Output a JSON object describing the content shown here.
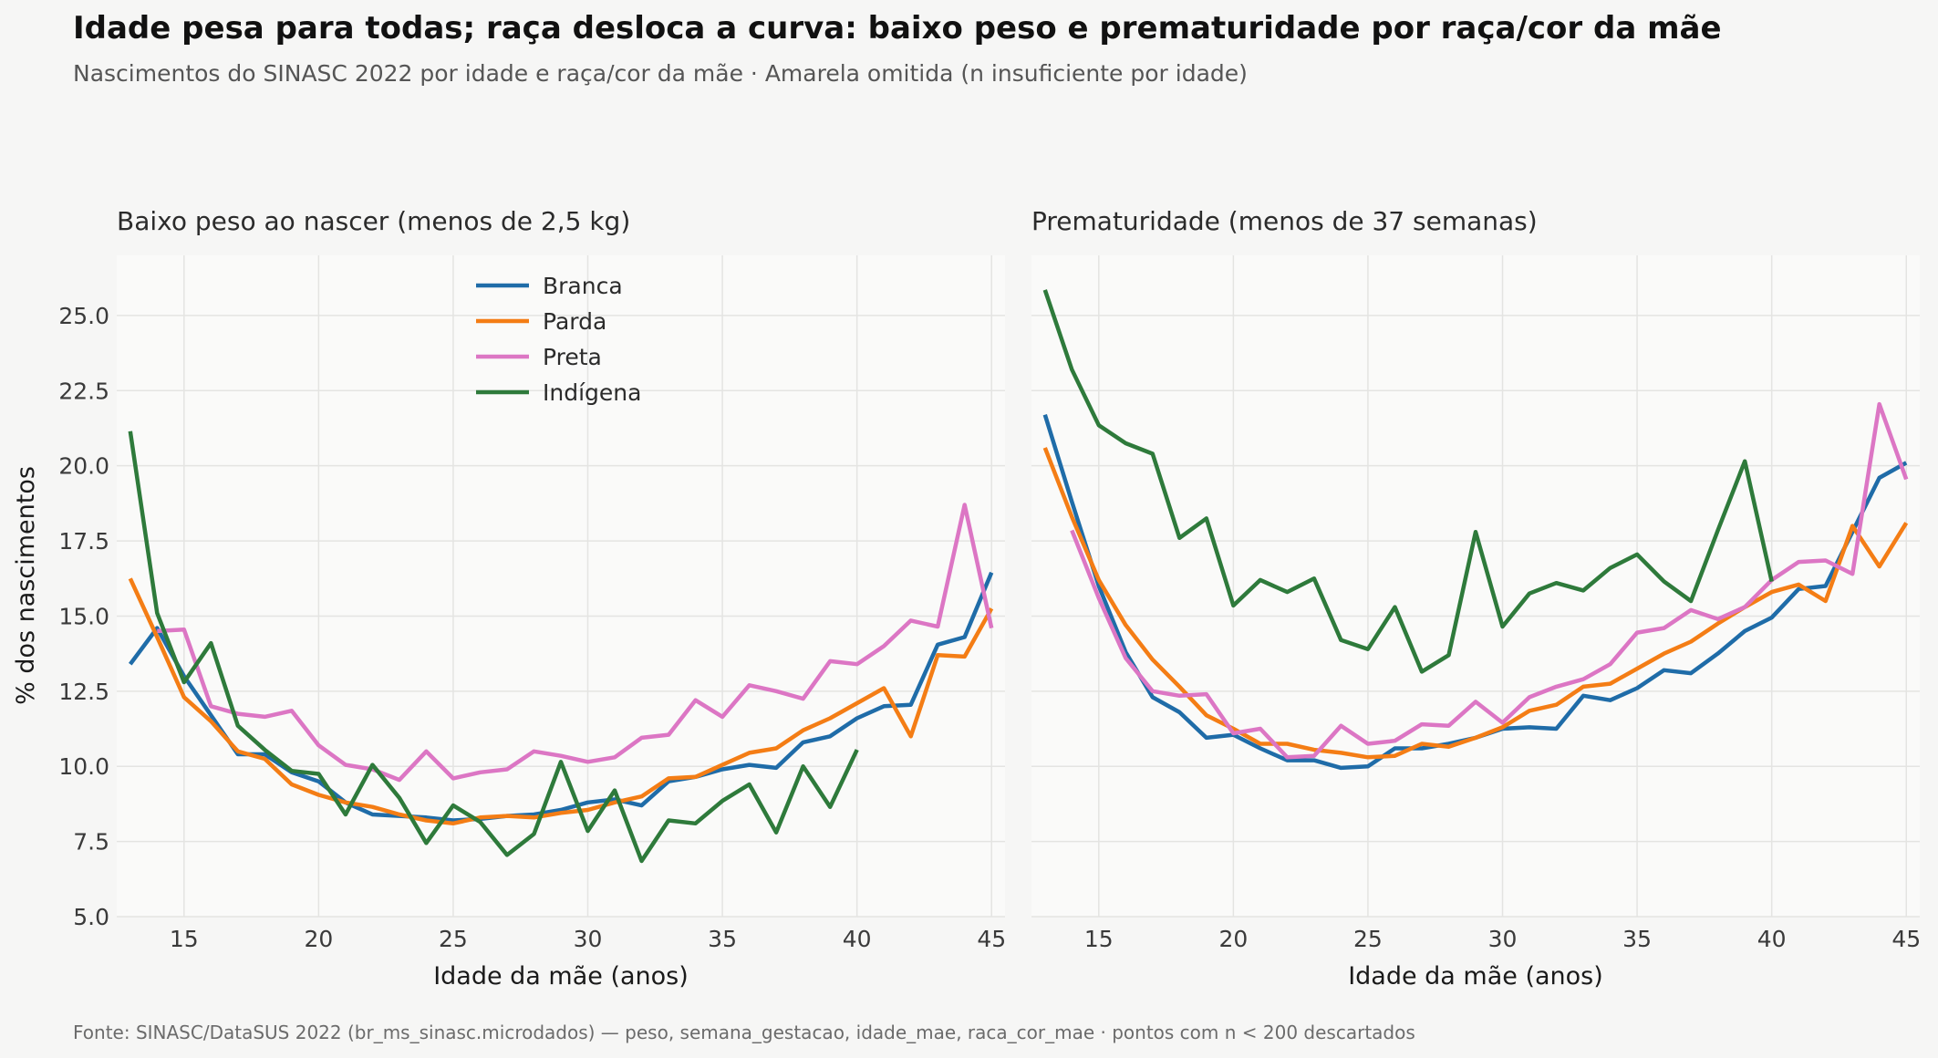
{
  "title": "Idade pesa para todas; raça desloca a curva: baixo peso e prematuridade por raça/cor da mãe",
  "subtitle": "Nascimentos do SINASC 2022 por idade e raça/cor da mãe · Amarela omitida (n insuficiente por idade)",
  "source": "Fonte: SINASC/DataSUS 2022 (br_ms_sinasc.microdados) — peso, semana_gestacao, idade_mae, raca_cor_mae · pontos com n < 200 descartados",
  "colors": {
    "Branca": "#1f6ca8",
    "Parda": "#f47d15",
    "Preta": "#dc76c4",
    "Indígena": "#2e7a3b"
  },
  "chart_data": [
    {
      "type": "line",
      "title": "Baixo peso ao nascer (menos de 2,5 kg)",
      "xlabel": "Idade da mãe (anos)",
      "ylabel": "% dos nascimentos",
      "xlim": [
        12.5,
        45.5
      ],
      "ylim": [
        5.0,
        27.0
      ],
      "xticks": [
        15,
        20,
        25,
        30,
        35,
        40,
        45
      ],
      "yticks": [
        5.0,
        7.5,
        10.0,
        12.5,
        15.0,
        17.5,
        20.0,
        22.5,
        25.0
      ],
      "grid": true,
      "legend": "top-center",
      "series": [
        {
          "name": "Branca",
          "x": [
            13,
            14,
            15,
            16,
            17,
            18,
            19,
            20,
            21,
            22,
            23,
            24,
            25,
            26,
            27,
            28,
            29,
            30,
            31,
            32,
            33,
            34,
            35,
            36,
            37,
            38,
            39,
            40,
            41,
            42,
            43,
            44,
            45
          ],
          "values": [
            13.4,
            14.6,
            13.0,
            11.7,
            10.4,
            10.4,
            9.8,
            9.5,
            8.8,
            8.4,
            8.35,
            8.3,
            8.2,
            8.25,
            8.35,
            8.4,
            8.55,
            8.8,
            8.9,
            8.7,
            9.5,
            9.65,
            9.9,
            10.05,
            9.95,
            10.8,
            11.0,
            11.6,
            12.0,
            12.05,
            14.05,
            14.3,
            16.45
          ]
        },
        {
          "name": "Parda",
          "x": [
            13,
            14,
            15,
            16,
            17,
            18,
            19,
            20,
            21,
            22,
            23,
            24,
            25,
            26,
            27,
            28,
            29,
            30,
            31,
            32,
            33,
            34,
            35,
            36,
            37,
            38,
            39,
            40,
            41,
            42,
            43,
            44,
            45
          ],
          "values": [
            16.25,
            14.3,
            12.3,
            11.5,
            10.5,
            10.25,
            9.4,
            9.05,
            8.8,
            8.65,
            8.4,
            8.2,
            8.1,
            8.3,
            8.35,
            8.3,
            8.45,
            8.55,
            8.8,
            9.0,
            9.6,
            9.65,
            10.05,
            10.45,
            10.6,
            11.2,
            11.6,
            12.1,
            12.6,
            11.0,
            13.7,
            13.65,
            15.25
          ]
        },
        {
          "name": "Preta",
          "x": [
            14,
            15,
            16,
            17,
            18,
            19,
            20,
            21,
            22,
            23,
            24,
            25,
            26,
            27,
            28,
            29,
            30,
            31,
            32,
            33,
            34,
            35,
            36,
            37,
            38,
            39,
            40,
            41,
            42,
            43,
            44,
            45
          ],
          "values": [
            14.5,
            14.55,
            12.0,
            11.75,
            11.65,
            11.85,
            10.7,
            10.05,
            9.9,
            9.55,
            10.5,
            9.6,
            9.8,
            9.9,
            10.5,
            10.35,
            10.15,
            10.3,
            10.95,
            11.05,
            12.2,
            11.65,
            12.7,
            12.5,
            12.25,
            13.5,
            13.4,
            14.0,
            14.85,
            14.65,
            18.7,
            14.6
          ]
        },
        {
          "name": "Indígena",
          "x": [
            13,
            14,
            15,
            16,
            17,
            18,
            19,
            20,
            21,
            22,
            23,
            24,
            25,
            26,
            27,
            28,
            29,
            30,
            31,
            32,
            33,
            34,
            35,
            36,
            37,
            38,
            39,
            40
          ],
          "values": [
            21.15,
            15.1,
            12.8,
            14.1,
            11.35,
            10.55,
            9.85,
            9.75,
            8.4,
            10.05,
            8.95,
            7.45,
            8.7,
            8.15,
            7.05,
            7.75,
            10.15,
            7.85,
            9.2,
            6.85,
            8.2,
            8.1,
            8.85,
            9.4,
            7.8,
            10.0,
            8.65,
            10.55
          ]
        }
      ]
    },
    {
      "type": "line",
      "title": "Prematuridade (menos de 37 semanas)",
      "xlabel": "Idade da mãe (anos)",
      "ylabel": "",
      "xlim": [
        12.5,
        45.5
      ],
      "ylim": [
        5.0,
        27.0
      ],
      "xticks": [
        15,
        20,
        25,
        30,
        35,
        40,
        45
      ],
      "yticks": [],
      "grid": true,
      "series": [
        {
          "name": "Branca",
          "x": [
            13,
            14,
            15,
            16,
            17,
            18,
            19,
            20,
            21,
            22,
            23,
            24,
            25,
            26,
            27,
            28,
            29,
            30,
            31,
            32,
            33,
            34,
            35,
            36,
            37,
            38,
            39,
            40,
            41,
            42,
            43,
            44,
            45
          ],
          "values": [
            21.7,
            18.8,
            16.0,
            13.8,
            12.3,
            11.8,
            10.95,
            11.05,
            10.6,
            10.2,
            10.2,
            9.95,
            10.0,
            10.6,
            10.6,
            10.75,
            10.95,
            11.25,
            11.3,
            11.25,
            12.35,
            12.2,
            12.6,
            13.2,
            13.1,
            13.75,
            14.5,
            14.95,
            15.9,
            16.0,
            17.8,
            19.6,
            20.1
          ]
        },
        {
          "name": "Parda",
          "x": [
            13,
            14,
            15,
            16,
            17,
            18,
            19,
            20,
            21,
            22,
            23,
            24,
            25,
            26,
            27,
            28,
            29,
            30,
            31,
            32,
            33,
            34,
            35,
            36,
            37,
            38,
            39,
            40,
            41,
            42,
            43,
            44,
            45
          ],
          "values": [
            20.6,
            18.3,
            16.2,
            14.7,
            13.55,
            12.65,
            11.7,
            11.25,
            10.75,
            10.75,
            10.55,
            10.45,
            10.3,
            10.35,
            10.75,
            10.65,
            10.95,
            11.3,
            11.85,
            12.05,
            12.65,
            12.75,
            13.25,
            13.75,
            14.15,
            14.75,
            15.3,
            15.8,
            16.05,
            15.5,
            18.0,
            16.65,
            18.1
          ]
        },
        {
          "name": "Preta",
          "x": [
            14,
            15,
            16,
            17,
            18,
            19,
            20,
            21,
            22,
            23,
            24,
            25,
            26,
            27,
            28,
            29,
            30,
            31,
            32,
            33,
            34,
            35,
            36,
            37,
            38,
            39,
            40,
            41,
            42,
            43,
            44,
            45
          ],
          "values": [
            17.85,
            15.6,
            13.6,
            12.5,
            12.35,
            12.4,
            11.1,
            11.25,
            10.3,
            10.35,
            11.35,
            10.75,
            10.85,
            11.4,
            11.35,
            12.15,
            11.45,
            12.3,
            12.65,
            12.9,
            13.4,
            14.45,
            14.6,
            15.2,
            14.9,
            15.3,
            16.2,
            16.8,
            16.85,
            16.4,
            22.05,
            19.55
          ]
        },
        {
          "name": "Indígena",
          "x": [
            13,
            14,
            15,
            16,
            17,
            18,
            19,
            20,
            21,
            22,
            23,
            24,
            25,
            26,
            27,
            28,
            29,
            30,
            31,
            32,
            33,
            34,
            35,
            36,
            37,
            38,
            39,
            40
          ],
          "values": [
            25.85,
            23.2,
            21.35,
            20.75,
            20.4,
            17.6,
            18.25,
            15.35,
            16.2,
            15.8,
            16.25,
            14.2,
            13.9,
            15.3,
            13.15,
            13.7,
            17.8,
            14.65,
            15.75,
            16.1,
            15.85,
            16.6,
            17.05,
            16.15,
            15.5,
            17.85,
            20.15,
            16.15
          ]
        }
      ]
    }
  ]
}
